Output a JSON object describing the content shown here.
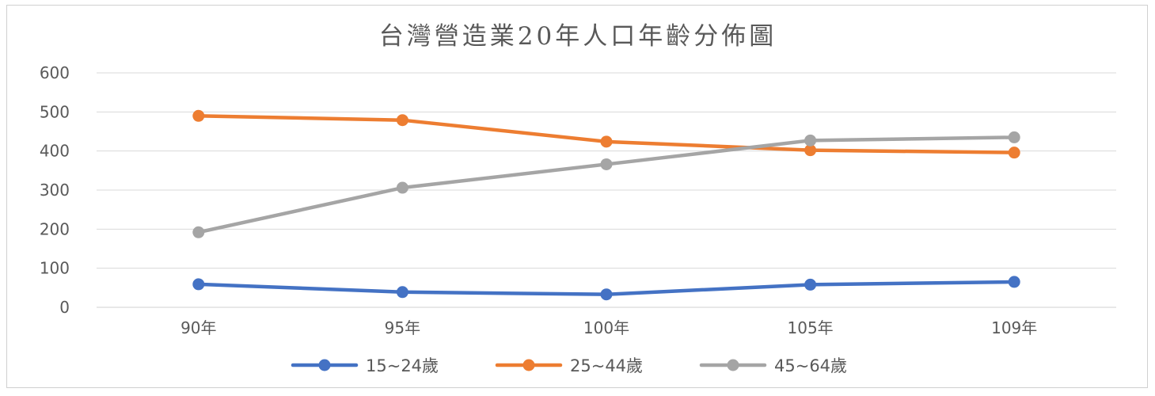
{
  "chart_data": {
    "type": "line",
    "title": "台灣營造業20年人口年齡分佈圖",
    "xlabel": "",
    "ylabel": "",
    "categories": [
      "90年",
      "95年",
      "100年",
      "105年",
      "109年"
    ],
    "ylim": [
      0,
      600
    ],
    "yticks": [
      0,
      100,
      200,
      300,
      400,
      500,
      600
    ],
    "grid": true,
    "legend_position": "bottom",
    "series": [
      {
        "name": "15~24歲",
        "color": "#4472C4",
        "values": [
          59,
          39,
          33,
          58,
          65
        ]
      },
      {
        "name": "25~44歲",
        "color": "#ED7D31",
        "values": [
          490,
          479,
          424,
          402,
          396
        ]
      },
      {
        "name": "45~64歲",
        "color": "#A5A5A5",
        "values": [
          192,
          306,
          366,
          427,
          435
        ]
      }
    ]
  }
}
